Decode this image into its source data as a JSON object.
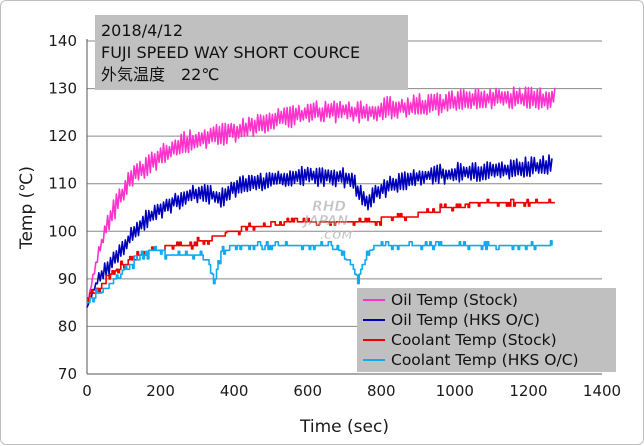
{
  "info_box": {
    "line1": "2018/4/12",
    "line2": "FUJI SPEED WAY SHORT COURCE",
    "line3": "外気温度　22℃"
  },
  "watermark": {
    "line1": "RHD",
    "line2": "JAPAN",
    "line3": ".COM"
  },
  "colors": {
    "oil_stock": "#ff33cc",
    "oil_hks": "#0000bb",
    "coolant_stock": "#ee0000",
    "coolant_hks": "#11aaee",
    "grid": "#888888",
    "info_bg": "#c0c0c0",
    "legend_bg": "#c0c0c0"
  },
  "chart_data": {
    "type": "line",
    "title": "",
    "xlabel": "Time (sec)",
    "ylabel": "Temp (℃)",
    "xlim": [
      0,
      1400
    ],
    "ylim": [
      70,
      140
    ],
    "xticks": [
      0,
      200,
      400,
      600,
      800,
      1000,
      1200,
      1400
    ],
    "yticks": [
      70,
      80,
      90,
      100,
      110,
      120,
      130,
      140
    ],
    "grid": "horizontal",
    "legend_position": "bottom-right",
    "series": [
      {
        "name": "Oil Temp (Stock)",
        "color": "#ff33cc",
        "x": [
          0,
          15,
          30,
          50,
          70,
          90,
          110,
          130,
          150,
          170,
          200,
          230,
          260,
          300,
          340,
          380,
          420,
          460,
          500,
          540,
          580,
          620,
          660,
          700,
          740,
          780,
          820,
          860,
          900,
          940,
          980,
          1020,
          1060,
          1100,
          1140,
          1180,
          1220,
          1260,
          1275
        ],
        "y": [
          84,
          90,
          95,
          100,
          104,
          107,
          110,
          112,
          113,
          114,
          116,
          117,
          118.5,
          119.5,
          120,
          120.5,
          121.5,
          122.5,
          123,
          124,
          124.5,
          125,
          125,
          125.5,
          125,
          125,
          126,
          126,
          126.5,
          126.5,
          127,
          127.5,
          128,
          128,
          128,
          128,
          128,
          128,
          129
        ],
        "amplitude": 1.6
      },
      {
        "name": "Oil Temp (HKS O/C)",
        "color": "#0000bb",
        "x": [
          0,
          15,
          30,
          50,
          70,
          90,
          110,
          130,
          150,
          170,
          200,
          230,
          260,
          300,
          340,
          370,
          400,
          440,
          480,
          520,
          560,
          600,
          640,
          680,
          720,
          740,
          760,
          780,
          820,
          860,
          900,
          940,
          980,
          1020,
          1060,
          1100,
          1140,
          1180,
          1220,
          1260,
          1265
        ],
        "y": [
          84,
          87,
          90,
          92,
          94,
          96,
          98,
          100,
          102,
          103,
          104.5,
          106,
          107,
          108,
          107.5,
          107,
          109,
          110,
          110.5,
          111,
          111.5,
          111.5,
          111.5,
          111.5,
          111,
          108,
          106,
          108,
          109.5,
          110.5,
          111.5,
          112,
          112,
          112.5,
          112.5,
          113,
          113,
          113.5,
          113.5,
          114,
          114
        ],
        "amplitude": 1.4
      },
      {
        "name": "Coolant Temp (Stock)",
        "color": "#ee0000",
        "x": [
          0,
          15,
          30,
          50,
          70,
          90,
          120,
          150,
          180,
          210,
          240,
          270,
          300,
          340,
          380,
          420,
          460,
          500,
          540,
          580,
          620,
          660,
          700,
          740,
          780,
          820,
          860,
          900,
          940,
          980,
          1020,
          1060,
          1100,
          1140,
          1180,
          1220,
          1260,
          1275
        ],
        "y": [
          86,
          87,
          88,
          89.5,
          91,
          92.5,
          94,
          95,
          96,
          96.5,
          97,
          97,
          97.5,
          98.5,
          99.5,
          100.5,
          101,
          101.5,
          102,
          102,
          102,
          102,
          102,
          102,
          102,
          103,
          103,
          103.5,
          104,
          105,
          105,
          106,
          105.5,
          105.5,
          105.5,
          105.5,
          105.5,
          106
        ],
        "amplitude": 0.7
      },
      {
        "name": "Coolant Temp (HKS O/C)",
        "color": "#11aaee",
        "x": [
          0,
          15,
          30,
          50,
          70,
          90,
          120,
          150,
          180,
          210,
          240,
          270,
          300,
          330,
          345,
          355,
          370,
          400,
          440,
          480,
          520,
          560,
          600,
          640,
          680,
          720,
          735,
          745,
          760,
          780,
          820,
          860,
          900,
          940,
          980,
          1020,
          1060,
          1100,
          1140,
          1180,
          1220,
          1260,
          1265
        ],
        "y": [
          85,
          86,
          87,
          88,
          89.5,
          91,
          93,
          95,
          96,
          95.5,
          95,
          95,
          95,
          94,
          89,
          93,
          96,
          97,
          97,
          97,
          96.5,
          96.5,
          96.5,
          96.5,
          96.5,
          93,
          89,
          92,
          95,
          97,
          97,
          96.5,
          96.5,
          96.5,
          96.5,
          96.5,
          96.5,
          96.5,
          96.5,
          97,
          97,
          97.5,
          97
        ],
        "amplitude": 0.8
      }
    ]
  }
}
